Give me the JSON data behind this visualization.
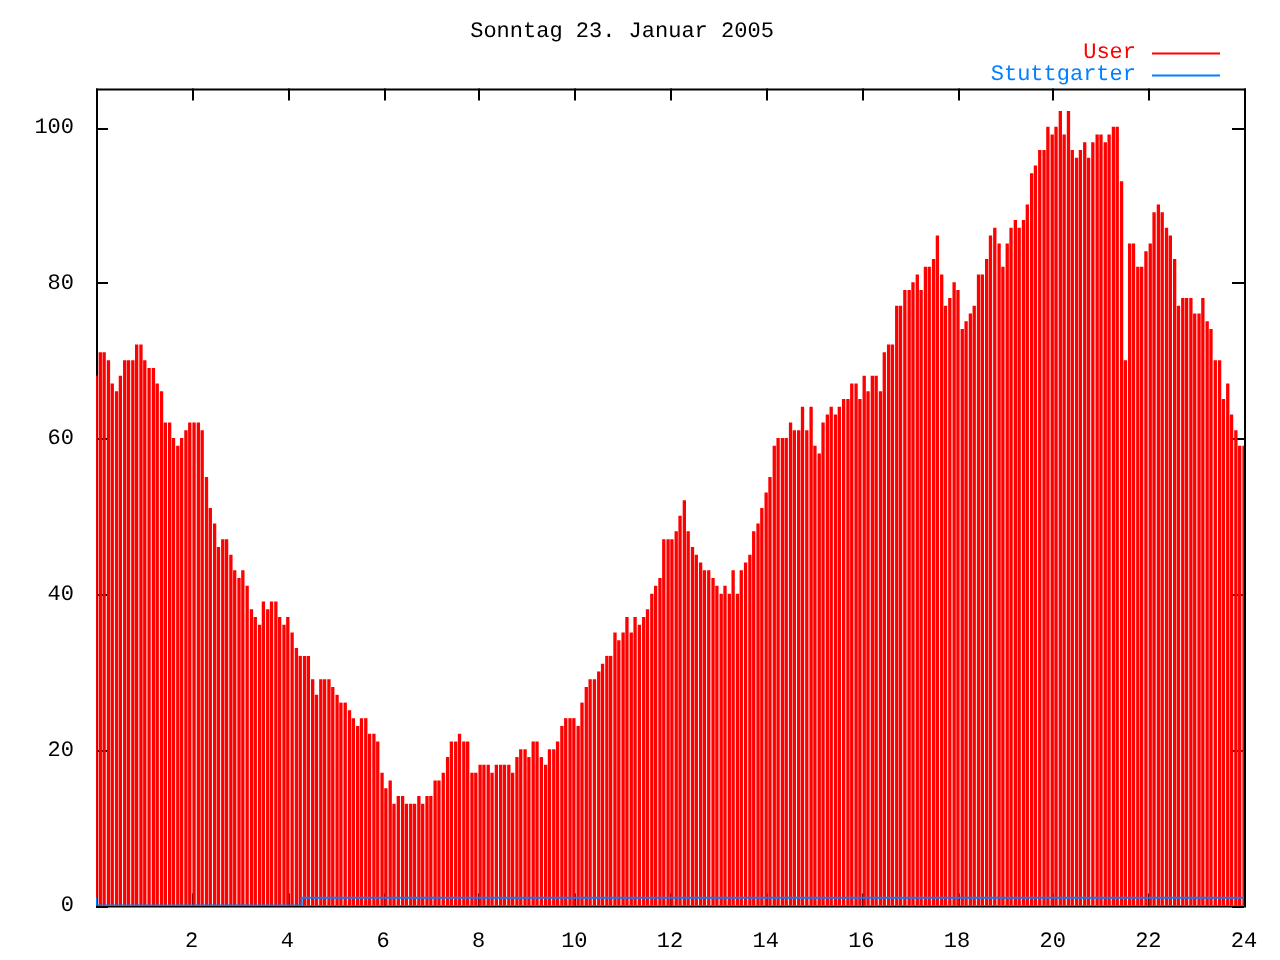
{
  "chart_data": {
    "type": "bar",
    "title": "Sonntag 23. Januar 2005",
    "xlim": [
      0,
      24
    ],
    "xticks": [
      {
        "value": 0,
        "label": null
      },
      2,
      4,
      6,
      8,
      10,
      12,
      14,
      16,
      18,
      20,
      22,
      24
    ],
    "ylim": [
      0,
      105
    ],
    "yticks": [
      0,
      20,
      40,
      60,
      80,
      100
    ],
    "grid": false,
    "legend": "top right",
    "series": [
      {
        "name": "User",
        "color": "#ff0000",
        "x": [
          0,
          0.09,
          0.17,
          0.26,
          0.34,
          0.43,
          0.51,
          0.6,
          0.68,
          0.77,
          0.85,
          0.94,
          1.02,
          1.11,
          1.2,
          1.28,
          1.37,
          1.45,
          1.54,
          1.62,
          1.71,
          1.79,
          1.88,
          1.96,
          2.05,
          2.14,
          2.22,
          2.31,
          2.39,
          2.48,
          2.56,
          2.65,
          2.73,
          2.82,
          2.9,
          2.99,
          3.07,
          3.16,
          3.25,
          3.33,
          3.42,
          3.5,
          3.59,
          3.67,
          3.76,
          3.84,
          3.93,
          4.01,
          4.1,
          4.19,
          4.27,
          4.36,
          4.44,
          4.53,
          4.61,
          4.7,
          4.78,
          4.87,
          4.95,
          5.04,
          5.12,
          5.21,
          5.3,
          5.38,
          5.47,
          5.55,
          5.64,
          5.72,
          5.81,
          5.89,
          5.98,
          6.06,
          6.15,
          6.23,
          6.32,
          6.41,
          6.49,
          6.58,
          6.66,
          6.75,
          6.83,
          6.92,
          7.0,
          7.09,
          7.17,
          7.26,
          7.35,
          7.43,
          7.52,
          7.6,
          7.69,
          7.77,
          7.86,
          7.94,
          8.03,
          8.11,
          8.2,
          8.28,
          8.37,
          8.46,
          8.54,
          8.63,
          8.71,
          8.8,
          8.88,
          8.97,
          9.05,
          9.14,
          9.22,
          9.31,
          9.4,
          9.48,
          9.57,
          9.65,
          9.74,
          9.82,
          9.91,
          9.99,
          10.08,
          10.16,
          10.25,
          10.33,
          10.42,
          10.51,
          10.59,
          10.68,
          10.76,
          10.85,
          10.93,
          11.02,
          11.1,
          11.19,
          11.27,
          11.36,
          11.45,
          11.53,
          11.62,
          11.7,
          11.79,
          11.87,
          11.96,
          12.04,
          12.13,
          12.21,
          12.3,
          12.38,
          12.47,
          12.55,
          12.64,
          12.72,
          12.81,
          12.9,
          12.98,
          13.07,
          13.15,
          13.24,
          13.32,
          13.41,
          13.49,
          13.58,
          13.67,
          13.75,
          13.84,
          13.92,
          14.01,
          14.09,
          14.18,
          14.26,
          14.35,
          14.43,
          14.52,
          14.6,
          14.69,
          14.77,
          14.86,
          14.95,
          15.03,
          15.12,
          15.2,
          15.29,
          15.37,
          15.46,
          15.54,
          15.63,
          15.72,
          15.8,
          15.89,
          15.97,
          16.06,
          16.14,
          16.23,
          16.31,
          16.4,
          16.48,
          16.57,
          16.65,
          16.74,
          16.82,
          16.91,
          17.0,
          17.08,
          17.17,
          17.25,
          17.34,
          17.42,
          17.51,
          17.59,
          17.68,
          17.76,
          17.85,
          17.94,
          18.02,
          18.11,
          18.19,
          18.28,
          18.36,
          18.45,
          18.53,
          18.62,
          18.7,
          18.79,
          18.88,
          18.96,
          19.05,
          19.13,
          19.22,
          19.3,
          19.39,
          19.47,
          19.56,
          19.64,
          19.73,
          19.82,
          19.9,
          19.99,
          20.07,
          20.16,
          20.24,
          20.33,
          20.41,
          20.5,
          20.58,
          20.67,
          20.75,
          20.84,
          20.93,
          21.01,
          21.1,
          21.18,
          21.27,
          21.35,
          21.44,
          21.52,
          21.61,
          21.69,
          21.78,
          21.86,
          21.95,
          22.04,
          22.12,
          22.21,
          22.29,
          22.38,
          22.46,
          22.55,
          22.63,
          22.72,
          22.8,
          22.89,
          22.97,
          23.06,
          23.14,
          23.23,
          23.31,
          23.4,
          23.49,
          23.57,
          23.66,
          23.74,
          23.83,
          23.91,
          24.0
        ],
        "values": [
          68,
          71,
          71,
          70,
          67,
          66,
          68,
          70,
          70,
          70,
          72,
          72,
          70,
          69,
          69,
          67,
          66,
          62,
          62,
          60,
          59,
          60,
          61,
          62,
          62,
          62,
          61,
          55,
          51,
          49,
          46,
          47,
          47,
          45,
          43,
          42,
          43,
          41,
          38,
          37,
          36,
          39,
          38,
          39,
          39,
          37,
          36,
          37,
          35,
          33,
          32,
          32,
          32,
          29,
          27,
          29,
          29,
          29,
          28,
          27,
          26,
          26,
          25,
          24,
          23,
          24,
          24,
          22,
          22,
          21,
          17,
          15,
          16,
          13,
          14,
          14,
          13,
          13,
          13,
          14,
          13,
          14,
          14,
          16,
          16,
          17,
          19,
          21,
          21,
          22,
          21,
          21,
          17,
          17,
          18,
          18,
          18,
          17,
          18,
          18,
          18,
          18,
          17,
          19,
          20,
          20,
          19,
          21,
          21,
          19,
          18,
          20,
          20,
          21,
          23,
          24,
          24,
          24,
          23,
          26,
          28,
          29,
          29,
          30,
          31,
          32,
          32,
          35,
          34,
          35,
          37,
          35,
          37,
          36,
          37,
          38,
          40,
          41,
          42,
          47,
          47,
          47,
          48,
          50,
          52,
          48,
          46,
          45,
          44,
          43,
          43,
          42,
          41,
          40,
          41,
          40,
          43,
          40,
          43,
          44,
          45,
          48,
          49,
          51,
          53,
          55,
          59,
          60,
          60,
          60,
          62,
          61,
          61,
          64,
          61,
          64,
          59,
          58,
          62,
          63,
          64,
          63,
          64,
          65,
          65,
          67,
          67,
          65,
          68,
          66,
          68,
          68,
          66,
          71,
          72,
          72,
          77,
          77,
          79,
          79,
          80,
          81,
          79,
          82,
          82,
          83,
          86,
          81,
          77,
          78,
          80,
          79,
          74,
          75,
          76,
          77,
          81,
          81,
          83,
          86,
          87,
          85,
          82,
          85,
          87,
          88,
          87,
          88,
          90,
          94,
          95,
          97,
          97,
          100,
          99,
          100,
          102,
          99,
          102,
          97,
          96,
          97,
          98,
          96,
          98,
          99,
          99,
          98,
          99,
          100,
          100,
          93,
          70,
          85,
          85,
          82,
          82,
          84,
          85,
          89,
          90,
          89,
          87,
          86,
          83,
          77,
          78,
          78,
          78,
          76,
          76,
          78,
          75,
          74,
          70,
          70,
          65,
          67,
          63,
          61,
          59,
          59
        ]
      },
      {
        "name": "Stuttgarter",
        "type": "step",
        "color": "#0080ff",
        "x": [
          0,
          4.3,
          18.1,
          24
        ],
        "values": [
          1,
          0,
          1,
          1
        ]
      }
    ]
  }
}
